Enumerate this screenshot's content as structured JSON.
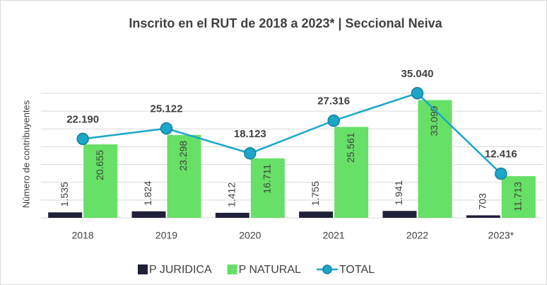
{
  "chart_data": {
    "type": "bar-line",
    "title": "Inscrito en el RUT de 2018 a 2023* | Seccional Neiva",
    "y_label": "Número de contribuyentes",
    "categories": [
      "2018",
      "2019",
      "2020",
      "2021",
      "2022",
      "2023*"
    ],
    "ylim": [
      0,
      35000
    ],
    "yticks": [
      0,
      5000,
      10000,
      15000,
      20000,
      25000,
      30000,
      35000
    ],
    "grid": true,
    "legend": "bottom",
    "series": [
      {
        "name": "P JURIDICA",
        "kind": "bar",
        "color": "#20203a",
        "values": [
          1535,
          1824,
          1412,
          1755,
          1941,
          703
        ],
        "value_labels": [
          "1.535",
          "1.824",
          "1.412",
          "1.755",
          "1.941",
          "703"
        ]
      },
      {
        "name": "P NATURAL",
        "kind": "bar",
        "color": "#66e066",
        "values": [
          20655,
          23298,
          16711,
          25561,
          33099,
          11713
        ],
        "value_labels": [
          "20.655",
          "23.298",
          "16.711",
          "25.561",
          "33.099",
          "11.713"
        ]
      },
      {
        "name": "TOTAL",
        "kind": "line",
        "color": "#1aa7c9",
        "values": [
          22190,
          25122,
          18123,
          27316,
          35040,
          12416
        ],
        "value_labels": [
          "22.190",
          "25.122",
          "18.123",
          "27.316",
          "35.040",
          "12.416"
        ]
      }
    ]
  }
}
